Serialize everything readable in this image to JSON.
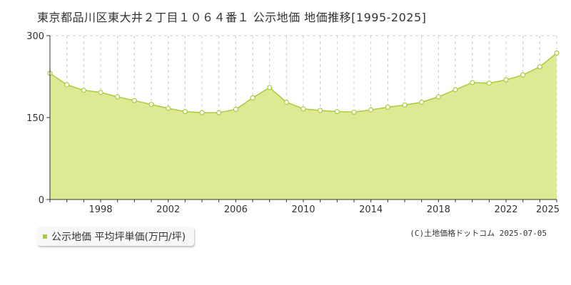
{
  "title": "東京都品川区東大井２丁目１０６４番１ 公示地価 地価推移[1995-2025]",
  "legend": {
    "label": "公示地価 平均坪単価(万円/坪)"
  },
  "credit": "(C)土地価格ドットコム 2025-07-05",
  "colors": {
    "fill": "#dde993",
    "line": "#a8cc3c",
    "point_fill": "#ffffff",
    "point_stroke": "#a8cc3c",
    "grid": "#cccccc",
    "axis": "#333333"
  },
  "chart_data": {
    "type": "area",
    "x": [
      1995,
      1996,
      1997,
      1998,
      1999,
      2000,
      2001,
      2002,
      2003,
      2004,
      2005,
      2006,
      2007,
      2008,
      2009,
      2010,
      2011,
      2012,
      2013,
      2014,
      2015,
      2016,
      2017,
      2018,
      2019,
      2020,
      2021,
      2022,
      2023,
      2024,
      2025
    ],
    "series": [
      {
        "values": [
          231,
          210,
          200,
          196,
          188,
          181,
          174,
          167,
          161,
          159,
          159,
          165,
          186,
          205,
          178,
          166,
          163,
          161,
          160,
          164,
          169,
          173,
          178,
          188,
          201,
          214,
          213,
          219,
          228,
          243,
          268
        ]
      }
    ],
    "x_tick_labels": [
      "1998",
      "2002",
      "2006",
      "2010",
      "2014",
      "2018",
      "2022",
      "2025"
    ],
    "x_tick_values": [
      1998,
      2002,
      2006,
      2010,
      2014,
      2018,
      2022,
      2025
    ],
    "y_tick_labels": [
      "0",
      "150",
      "300"
    ],
    "y_tick_values": [
      0,
      150,
      300
    ],
    "ylim": [
      0,
      300
    ],
    "xlim": [
      1995,
      2025
    ],
    "grid": true
  }
}
